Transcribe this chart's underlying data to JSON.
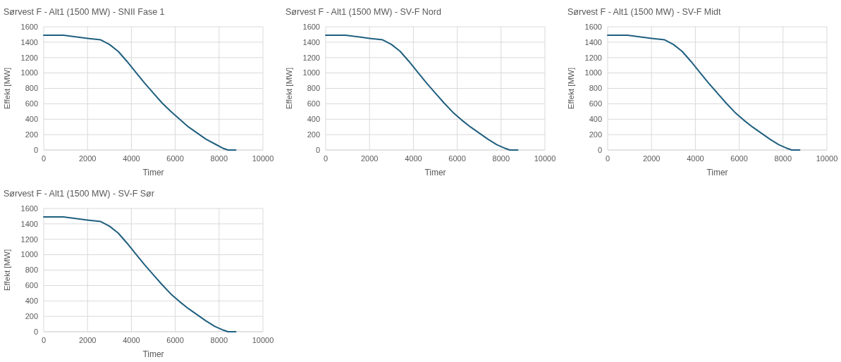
{
  "chart_data": [
    {
      "type": "line",
      "title": "Sørvest F - Alt1 (1500 MW) - SNII Fase 1",
      "xlabel": "Timer",
      "ylabel": "Effekt [MW]",
      "xlim": [
        0,
        10000
      ],
      "xticks": [
        0,
        2000,
        4000,
        6000,
        8000,
        10000
      ],
      "ylim": [
        0,
        1600
      ],
      "yticks": [
        0,
        200,
        400,
        600,
        800,
        1000,
        1200,
        1400,
        1600
      ],
      "grid": true,
      "marker": "none",
      "series": [
        {
          "color": "#1f5f7f",
          "x": [
            0,
            900,
            2000,
            2600,
            3000,
            3400,
            3800,
            4200,
            4600,
            5000,
            5400,
            5800,
            6200,
            6600,
            7000,
            7400,
            7800,
            8200,
            8400,
            8760
          ],
          "values": [
            1490,
            1490,
            1450,
            1430,
            1370,
            1280,
            1150,
            1010,
            870,
            740,
            610,
            500,
            400,
            300,
            220,
            140,
            80,
            20,
            0,
            0
          ]
        }
      ]
    },
    {
      "type": "line",
      "title": "Sørvest F - Alt1 (1500 MW) -  SV-F Nord",
      "xlabel": "Timer",
      "ylabel": "Effekt [MW]",
      "xlim": [
        0,
        10000
      ],
      "xticks": [
        0,
        2000,
        4000,
        6000,
        8000,
        10000
      ],
      "ylim": [
        0,
        1600
      ],
      "yticks": [
        0,
        200,
        400,
        600,
        800,
        1000,
        1200,
        1400,
        1600
      ],
      "grid": true,
      "marker": "none",
      "series": [
        {
          "color": "#1f5f7f",
          "x": [
            0,
            900,
            2000,
            2600,
            3000,
            3400,
            3800,
            4200,
            4600,
            5000,
            5400,
            5800,
            6200,
            6600,
            7000,
            7400,
            7800,
            8200,
            8400,
            8760
          ],
          "values": [
            1490,
            1490,
            1450,
            1430,
            1370,
            1280,
            1150,
            1010,
            870,
            740,
            610,
            490,
            390,
            300,
            220,
            140,
            70,
            20,
            0,
            0
          ]
        }
      ]
    },
    {
      "type": "line",
      "title": "Sørvest F - Alt1 (1500 MW) -  SV-F Midt",
      "xlabel": "Timer",
      "ylabel": "Effekt [MW]",
      "xlim": [
        0,
        10000
      ],
      "xticks": [
        0,
        2000,
        4000,
        6000,
        8000,
        10000
      ],
      "ylim": [
        0,
        1600
      ],
      "yticks": [
        0,
        200,
        400,
        600,
        800,
        1000,
        1200,
        1400,
        1600
      ],
      "grid": true,
      "marker": "none",
      "series": [
        {
          "color": "#1f5f7f",
          "x": [
            0,
            900,
            2000,
            2600,
            3000,
            3400,
            3800,
            4200,
            4600,
            5000,
            5400,
            5800,
            6200,
            6600,
            7000,
            7400,
            7800,
            8200,
            8400,
            8760
          ],
          "values": [
            1490,
            1490,
            1450,
            1430,
            1370,
            1280,
            1150,
            1010,
            870,
            740,
            610,
            490,
            390,
            300,
            220,
            140,
            70,
            20,
            0,
            0
          ]
        }
      ]
    },
    {
      "type": "line",
      "title": "Sørvest F - Alt1 (1500 MW) -  SV-F Sør",
      "xlabel": "Timer",
      "ylabel": "Effekt [MW]",
      "xlim": [
        0,
        10000
      ],
      "xticks": [
        0,
        2000,
        4000,
        6000,
        8000,
        10000
      ],
      "ylim": [
        0,
        1600
      ],
      "yticks": [
        0,
        200,
        400,
        600,
        800,
        1000,
        1200,
        1400,
        1600
      ],
      "grid": true,
      "marker": "none",
      "series": [
        {
          "color": "#1f5f7f",
          "x": [
            0,
            900,
            2000,
            2600,
            3000,
            3400,
            3800,
            4200,
            4600,
            5000,
            5400,
            5800,
            6200,
            6600,
            7000,
            7400,
            7800,
            8200,
            8400,
            8760
          ],
          "values": [
            1490,
            1490,
            1450,
            1430,
            1370,
            1280,
            1150,
            1010,
            870,
            740,
            610,
            490,
            390,
            300,
            220,
            140,
            70,
            20,
            0,
            0
          ]
        }
      ]
    }
  ]
}
